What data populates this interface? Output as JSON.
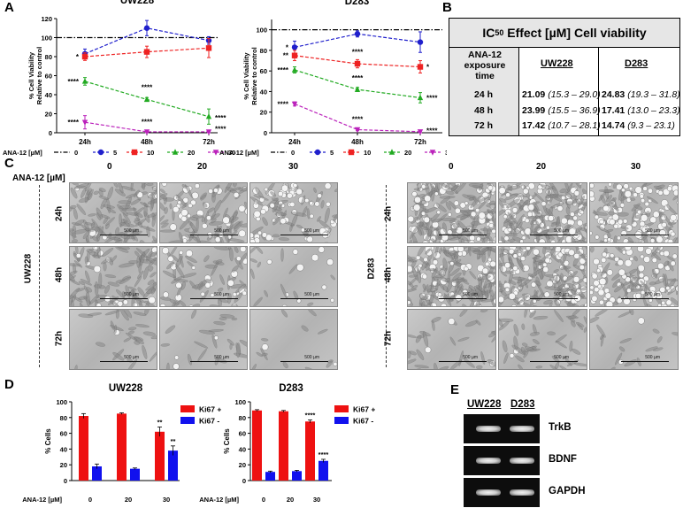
{
  "panelA": {
    "letter": "A",
    "legend_label": "ANA-12 [µM]",
    "legend": [
      {
        "name": "0",
        "color": "#000000",
        "marker": "none"
      },
      {
        "name": "5",
        "color": "#1f1fcc",
        "marker": "circle"
      },
      {
        "name": "10",
        "color": "#ee2222",
        "marker": "square"
      },
      {
        "name": "20",
        "color": "#22aa22",
        "marker": "triangle"
      },
      {
        "name": "30",
        "color": "#bb22bb",
        "marker": "invtriangle"
      }
    ]
  },
  "panelB": {
    "letter": "B",
    "title_prefix": "IC",
    "title_sub": "50",
    "title_suffix": " Effect [µM] Cell viability",
    "row_header": [
      "ANA-12",
      "exposure",
      "time"
    ],
    "col_heads": [
      "UW228",
      "D283"
    ],
    "rows": [
      {
        "time": "24 h",
        "uw_val": "21.09",
        "uw_ci": "(15.3 – 29.0)",
        "d_val": "24.83",
        "d_ci": "(19.3 – 31.8)"
      },
      {
        "time": "48 h",
        "uw_val": "23.99",
        "uw_ci": "(15.5 – 36.9)",
        "d_val": "17.41",
        "d_ci": "(13.0 – 23.3)"
      },
      {
        "time": "72 h",
        "uw_val": "17.42",
        "uw_ci": "(10.7 – 28.1)",
        "d_val": "14.74",
        "d_ci": "(9.3 – 23.1)"
      }
    ]
  },
  "panelC": {
    "letter": "C",
    "ana_label": "ANA-12 [µM]",
    "concentrations": [
      "0",
      "20",
      "30"
    ],
    "times": [
      "24h",
      "48h",
      "72h"
    ],
    "lines": [
      "UW228",
      "D283"
    ],
    "scale_bar": "500 µm"
  },
  "panelD": {
    "letter": "D",
    "legend": [
      {
        "name": "Ki67 +",
        "color": "#ee1111"
      },
      {
        "name": "Ki67 -",
        "color": "#1111ee"
      }
    ]
  },
  "panelE": {
    "letter": "E",
    "lanes": [
      "UW228",
      "D283"
    ],
    "bands": [
      "TrkB",
      "BDNF",
      "GAPDH"
    ]
  },
  "chart_data": [
    {
      "type": "line",
      "title": "UW228",
      "xlabel": "",
      "ylabel": "% Cell Viability Relative to control",
      "categories": [
        "24h",
        "48h",
        "72h"
      ],
      "yticks": [
        "0",
        "20",
        "40",
        "60",
        "80",
        "100",
        "120"
      ],
      "ylim": [
        0,
        120
      ],
      "reference_line": 100,
      "series": [
        {
          "name": "5",
          "values": [
            83,
            110,
            97
          ],
          "errors": [
            5,
            8,
            4
          ]
        },
        {
          "name": "10",
          "values": [
            80,
            85,
            89
          ],
          "errors": [
            4,
            6,
            10
          ]
        },
        {
          "name": "20",
          "values": [
            54,
            35,
            17
          ],
          "errors": [
            4,
            2,
            8
          ]
        },
        {
          "name": "30",
          "values": [
            11,
            1,
            1
          ],
          "errors": [
            7,
            1,
            1
          ]
        }
      ],
      "annotations": [
        {
          "x": "24h",
          "y": 80,
          "side": "left",
          "text": "*"
        },
        {
          "x": "24h",
          "y": 54,
          "side": "left",
          "text": "****"
        },
        {
          "x": "24h",
          "y": 11,
          "side": "left",
          "text": "****"
        },
        {
          "x": "48h",
          "y": 44,
          "side": "above",
          "text": "****"
        },
        {
          "x": "48h",
          "y": 8,
          "side": "above",
          "text": "****"
        },
        {
          "x": "72h",
          "y": 16,
          "side": "right",
          "text": "****"
        },
        {
          "x": "72h",
          "y": 4,
          "side": "right",
          "text": "****"
        }
      ]
    },
    {
      "type": "line",
      "title": "D283",
      "xlabel": "",
      "ylabel": "% Cell Viability Relative to control",
      "categories": [
        "24h",
        "48h",
        "72h"
      ],
      "yticks": [
        "0",
        "20",
        "40",
        "60",
        "80",
        "100"
      ],
      "ylim": [
        0,
        110
      ],
      "reference_line": 100,
      "series": [
        {
          "name": "5",
          "values": [
            83,
            96,
            88
          ],
          "errors": [
            6,
            3,
            10
          ]
        },
        {
          "name": "10",
          "values": [
            75,
            67,
            64
          ],
          "errors": [
            5,
            4,
            6
          ]
        },
        {
          "name": "20",
          "values": [
            61,
            42,
            34
          ],
          "errors": [
            3,
            2,
            5
          ]
        },
        {
          "name": "30",
          "values": [
            28,
            3,
            1
          ],
          "errors": [
            2,
            1,
            1
          ]
        }
      ],
      "annotations": [
        {
          "x": "24h",
          "y": 83,
          "side": "left",
          "text": "*"
        },
        {
          "x": "24h",
          "y": 75,
          "side": "left",
          "text": "**"
        },
        {
          "x": "24h",
          "y": 61,
          "side": "left",
          "text": "****"
        },
        {
          "x": "24h",
          "y": 28,
          "side": "left",
          "text": "****"
        },
        {
          "x": "48h",
          "y": 75,
          "side": "above",
          "text": "****"
        },
        {
          "x": "48h",
          "y": 50,
          "side": "above",
          "text": "****"
        },
        {
          "x": "48h",
          "y": 10,
          "side": "above",
          "text": "****"
        },
        {
          "x": "72h",
          "y": 64,
          "side": "right",
          "text": "*"
        },
        {
          "x": "72h",
          "y": 34,
          "side": "right",
          "text": "****"
        },
        {
          "x": "72h",
          "y": 2,
          "side": "right",
          "text": "****"
        }
      ]
    },
    {
      "type": "bar",
      "title": "UW228",
      "xlabel": "ANA-12 [µM]",
      "ylabel": "% Cells",
      "categories": [
        "0",
        "20",
        "30"
      ],
      "yticks": [
        "0",
        "20",
        "40",
        "60",
        "80",
        "100"
      ],
      "ylim": [
        0,
        100
      ],
      "series": [
        {
          "name": "Ki67 +",
          "values": [
            82,
            85,
            62
          ],
          "errors": [
            3,
            1,
            6
          ],
          "sig": [
            "",
            "",
            "**"
          ]
        },
        {
          "name": "Ki67 -",
          "values": [
            18,
            15,
            38
          ],
          "errors": [
            3,
            1,
            6
          ],
          "sig": [
            "",
            "",
            "**"
          ]
        }
      ]
    },
    {
      "type": "bar",
      "title": "D283",
      "xlabel": "ANA-12 [µM]",
      "ylabel": "% Cells",
      "categories": [
        "0",
        "20",
        "30"
      ],
      "yticks": [
        "0",
        "20",
        "40",
        "60",
        "80",
        "100"
      ],
      "ylim": [
        0,
        100
      ],
      "series": [
        {
          "name": "Ki67 +",
          "values": [
            89,
            88,
            75
          ],
          "errors": [
            1,
            1,
            2
          ],
          "sig": [
            "",
            "",
            "****"
          ]
        },
        {
          "name": "Ki67 -",
          "values": [
            11,
            12,
            25
          ],
          "errors": [
            1,
            1,
            2
          ],
          "sig": [
            "",
            "",
            "****"
          ]
        }
      ]
    }
  ]
}
